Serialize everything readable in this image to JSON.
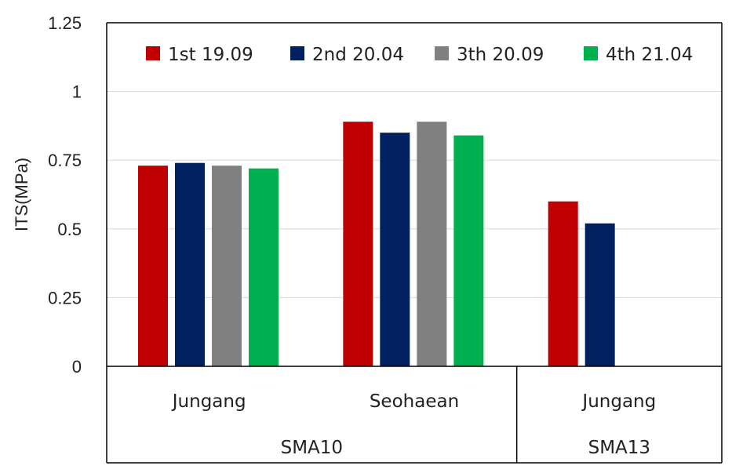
{
  "chart_data": {
    "type": "bar",
    "title": "",
    "xlabel": "",
    "ylabel": "ITS(MPa)",
    "ylim": [
      0,
      1.25
    ],
    "yticks": [
      0,
      0.25,
      0.5,
      0.75,
      1,
      1.25
    ],
    "ytick_labels": [
      "0",
      "0.25",
      "0.5",
      "0.75",
      "1",
      "1.25"
    ],
    "grid": true,
    "legend_position": "top",
    "categories": [
      "Jungang",
      "Seohaean",
      "Jungang"
    ],
    "groups": [
      {
        "label": "SMA10",
        "categories": [
          "Jungang",
          "Seohaean"
        ]
      },
      {
        "label": "SMA13",
        "categories": [
          "Jungang"
        ]
      }
    ],
    "series": [
      {
        "name": "1st 19.09",
        "color": "#c00000",
        "values": [
          0.73,
          0.89,
          0.6
        ]
      },
      {
        "name": "2nd 20.04",
        "color": "#002060",
        "values": [
          0.74,
          0.85,
          0.52
        ]
      },
      {
        "name": "3th 20.09",
        "color": "#808080",
        "values": [
          0.73,
          0.89,
          null
        ]
      },
      {
        "name": "4th 21.04",
        "color": "#00b050",
        "values": [
          0.72,
          0.84,
          null
        ]
      }
    ]
  }
}
